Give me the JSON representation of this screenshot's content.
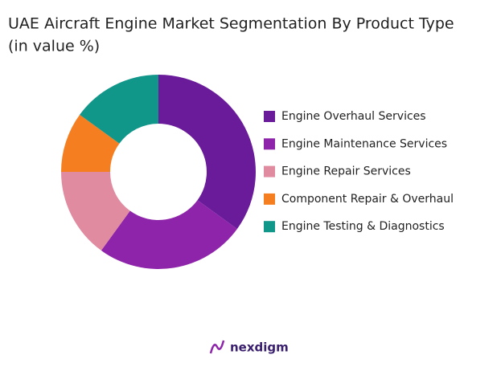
{
  "chart_data": {
    "type": "donut",
    "title": "UAE Aircraft Engine Market Segmentation By Product Type",
    "subtitle": "(in value %)",
    "categories": [
      "Engine Overhaul Services",
      "Engine Maintenance Services",
      "Engine Repair Services",
      "Component Repair & Overhaul",
      "Engine Testing & Diagnostics"
    ],
    "values": [
      35,
      25,
      15,
      10,
      15
    ],
    "colors": [
      "#6a1b9a",
      "#8e24aa",
      "#e08ba0",
      "#f57f20",
      "#11968a"
    ],
    "legend": "right"
  },
  "footer": {
    "brand": "nexdigm"
  }
}
